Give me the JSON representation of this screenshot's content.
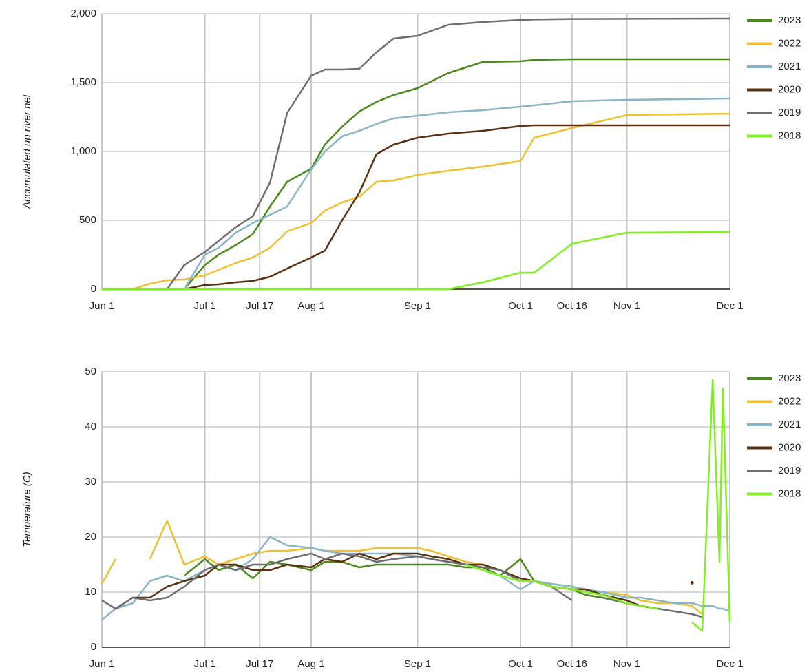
{
  "chart_data": [
    {
      "type": "line",
      "ylabel": "Accumulated up river net",
      "x": [
        "Jun 1",
        "Jun 10",
        "Jun 15",
        "Jun 20",
        "Jun 25",
        "Jul 1",
        "Jul 5",
        "Jul 10",
        "Jul 15",
        "Jul 20",
        "Jul 25",
        "Aug 1",
        "Aug 5",
        "Aug 10",
        "Aug 15",
        "Aug 20",
        "Aug 25",
        "Sep 1",
        "Sep 10",
        "Sep 20",
        "Oct 1",
        "Oct 5",
        "Oct 16",
        "Nov 1",
        "Dec 1"
      ],
      "xlim": [
        "Jun 1",
        "Dec 1"
      ],
      "xticks": [
        "Jun 1",
        "Jul 1",
        "Jul 17",
        "Aug 1",
        "Sep 1",
        "Oct 1",
        "Oct 16",
        "Nov 1",
        "Dec 1"
      ],
      "ylim": [
        0,
        2000
      ],
      "yticks": [
        0,
        500,
        {
          "value": 1000,
          "label": "1,000"
        },
        {
          "value": 1500,
          "label": "1,500"
        },
        {
          "value": 2000,
          "label": "2,000"
        }
      ],
      "grid": true,
      "legend": "right",
      "series": [
        {
          "name": "2023",
          "color": "#4a8a1c",
          "values": [
            0,
            0,
            0,
            0,
            0,
            175,
            250,
            320,
            400,
            600,
            780,
            875,
            1050,
            1180,
            1290,
            1360,
            1410,
            1460,
            1570,
            1650,
            1655,
            1665,
            1670,
            1670,
            1670
          ]
        },
        {
          "name": "2022",
          "color": "#f0c030",
          "values": [
            0,
            0,
            40,
            65,
            70,
            100,
            140,
            190,
            230,
            300,
            420,
            480,
            570,
            630,
            670,
            780,
            790,
            830,
            860,
            890,
            930,
            1100,
            1170,
            1265,
            1275
          ]
        },
        {
          "name": "2021",
          "color": "#8ab4c8",
          "values": [
            0,
            0,
            0,
            0,
            0,
            250,
            300,
            410,
            480,
            540,
            600,
            870,
            1000,
            1110,
            1150,
            1200,
            1240,
            1260,
            1285,
            1300,
            1325,
            1335,
            1365,
            1375,
            1385
          ]
        },
        {
          "name": "2020",
          "color": "#5a3010",
          "values": [
            0,
            0,
            0,
            0,
            0,
            30,
            35,
            50,
            60,
            90,
            150,
            230,
            280,
            500,
            700,
            980,
            1050,
            1100,
            1130,
            1150,
            1185,
            1190,
            1190,
            1190,
            1190
          ]
        },
        {
          "name": "2019",
          "color": "#6e6e6e",
          "values": [
            0,
            0,
            0,
            0,
            175,
            270,
            350,
            450,
            530,
            775,
            1280,
            1550,
            1595,
            1595,
            1600,
            1720,
            1820,
            1840,
            1920,
            1940,
            1955,
            1958,
            1962,
            1963,
            1965
          ]
        },
        {
          "name": "2018",
          "color": "#80f020",
          "values": [
            0,
            0,
            0,
            0,
            0,
            0,
            0,
            0,
            0,
            0,
            0,
            0,
            0,
            0,
            0,
            0,
            0,
            0,
            0,
            50,
            120,
            120,
            330,
            410,
            415
          ]
        }
      ]
    },
    {
      "type": "line",
      "ylabel": "Temperature (C)",
      "x": [
        "Jun 1",
        "Jun 5",
        "Jun 10",
        "Jun 15",
        "Jun 20",
        "Jun 25",
        "Jul 1",
        "Jul 5",
        "Jul 10",
        "Jul 15",
        "Jul 20",
        "Jul 25",
        "Aug 1",
        "Aug 5",
        "Aug 10",
        "Aug 15",
        "Aug 20",
        "Aug 25",
        "Sep 1",
        "Sep 5",
        "Sep 10",
        "Sep 15",
        "Sep 20",
        "Sep 25",
        "Oct 1",
        "Oct 5",
        "Oct 10",
        "Oct 16",
        "Oct 20",
        "Oct 25",
        "Nov 1",
        "Nov 5",
        "Nov 10",
        "Nov 15",
        "Nov 20",
        "Nov 23",
        "Nov 26",
        "Nov 28",
        "Nov 29",
        "Dec 1"
      ],
      "xlim": [
        "Jun 1",
        "Dec 1"
      ],
      "xticks": [
        "Jun 1",
        "Jul 1",
        "Jul 17",
        "Aug 1",
        "Sep 1",
        "Oct 1",
        "Oct 16",
        "Nov 1",
        "Dec 1"
      ],
      "ylim": [
        0,
        50
      ],
      "yticks": [
        0,
        10,
        20,
        30,
        40,
        50
      ],
      "grid": true,
      "legend": "right",
      "series": [
        {
          "name": "2023",
          "color": "#4a8a1c",
          "values": [
            null,
            null,
            null,
            null,
            null,
            13,
            16,
            14,
            15,
            12.5,
            15.5,
            15,
            14,
            15.5,
            15.5,
            14.5,
            15,
            15,
            15,
            15,
            15,
            14.5,
            14.5,
            13,
            16,
            12,
            11,
            10.5,
            9.5,
            9,
            8,
            7.5,
            7,
            null,
            null,
            null,
            null,
            null,
            null,
            null
          ]
        },
        {
          "name": "2022",
          "color": "#f0c030",
          "values": [
            11.5,
            16,
            null,
            16,
            23,
            15,
            16.5,
            15,
            16,
            17,
            17.5,
            17.5,
            18,
            17.5,
            17.5,
            17.5,
            18,
            18,
            18,
            17.5,
            16.5,
            15.5,
            15,
            14,
            12.5,
            12,
            11.5,
            11,
            10.5,
            10,
            9.5,
            8.5,
            8,
            8,
            7.5,
            6,
            null,
            null,
            null,
            null
          ]
        },
        {
          "name": "2021",
          "color": "#8ab4c8",
          "values": [
            5,
            7,
            8,
            12,
            13,
            12,
            14,
            15,
            14,
            16,
            20,
            18.5,
            18,
            17.5,
            17,
            17,
            17,
            17,
            16.5,
            16,
            15.5,
            15,
            14,
            13,
            10.5,
            12,
            11.5,
            11,
            10.5,
            10,
            9,
            9,
            8.5,
            8,
            8,
            7.5,
            7.5,
            7,
            7,
            6.5
          ]
        },
        {
          "name": "2020",
          "color": "#5a3010",
          "values": [
            null,
            7,
            9,
            9,
            11,
            12,
            13,
            15,
            15,
            14,
            14,
            15,
            14.5,
            16,
            15.5,
            17,
            16,
            17,
            17,
            16.5,
            16,
            15,
            15,
            14,
            12.5,
            12,
            11,
            10.5,
            10.5,
            9.5,
            8.5,
            7.5,
            7,
            null,
            11.7,
            null,
            null,
            null,
            null,
            null
          ]
        },
        {
          "name": "2019",
          "color": "#6e6e6e",
          "values": [
            8.5,
            7,
            9,
            8.5,
            9,
            11,
            14,
            15,
            14,
            15,
            15,
            16,
            17,
            16,
            17,
            16.5,
            15.5,
            16,
            16.5,
            16,
            15.5,
            15,
            14.5,
            14,
            12,
            12,
            11,
            8.5,
            null,
            9,
            8,
            7.5,
            7,
            6.5,
            6,
            5.5,
            null,
            null,
            null,
            null
          ]
        },
        {
          "name": "2018",
          "color": "#80f020",
          "values": [
            null,
            null,
            null,
            null,
            null,
            null,
            null,
            null,
            null,
            null,
            null,
            null,
            null,
            null,
            null,
            null,
            null,
            null,
            null,
            null,
            null,
            15,
            14,
            13,
            12,
            12,
            11,
            10.5,
            10,
            9.5,
            8,
            7.5,
            7,
            null,
            4.5,
            3,
            48.5,
            15.5,
            47,
            4.5
          ]
        }
      ]
    }
  ]
}
